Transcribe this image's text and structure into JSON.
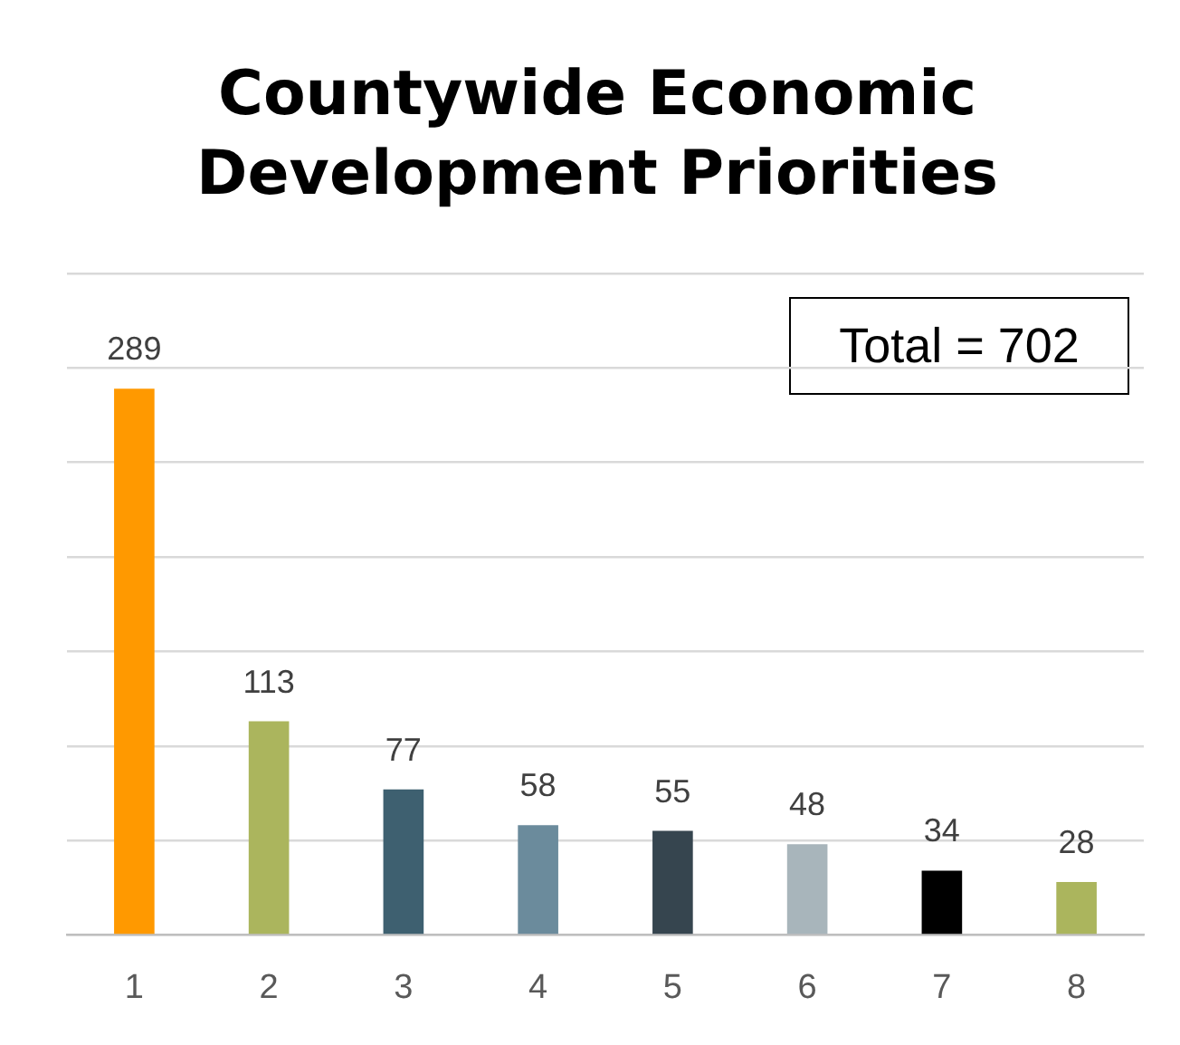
{
  "chart_data": {
    "type": "bar",
    "title": "Countywide Economic Development Priorities",
    "categories": [
      "1",
      "2",
      "3",
      "4",
      "5",
      "6",
      "7",
      "8"
    ],
    "values": [
      289,
      113,
      77,
      58,
      55,
      48,
      34,
      28
    ],
    "colors": [
      "#ff9900",
      "#abb55d",
      "#3e6070",
      "#6b8b9c",
      "#36454f",
      "#a8b5bb",
      "#000000",
      "#abb55d"
    ],
    "ylim": [
      0,
      350
    ],
    "yticks": [
      {
        "value": 0,
        "label": null
      },
      {
        "value": 50,
        "label": null
      },
      {
        "value": 100,
        "label": null
      },
      {
        "value": 150,
        "label": null
      },
      {
        "value": 200,
        "label": null
      },
      {
        "value": 250,
        "label": null
      },
      {
        "value": 300,
        "label": null
      },
      {
        "value": 350,
        "label": null
      }
    ],
    "grid": "y",
    "tick_labels": "x",
    "data_labels": true,
    "annotations": [
      "Total = 702"
    ]
  }
}
